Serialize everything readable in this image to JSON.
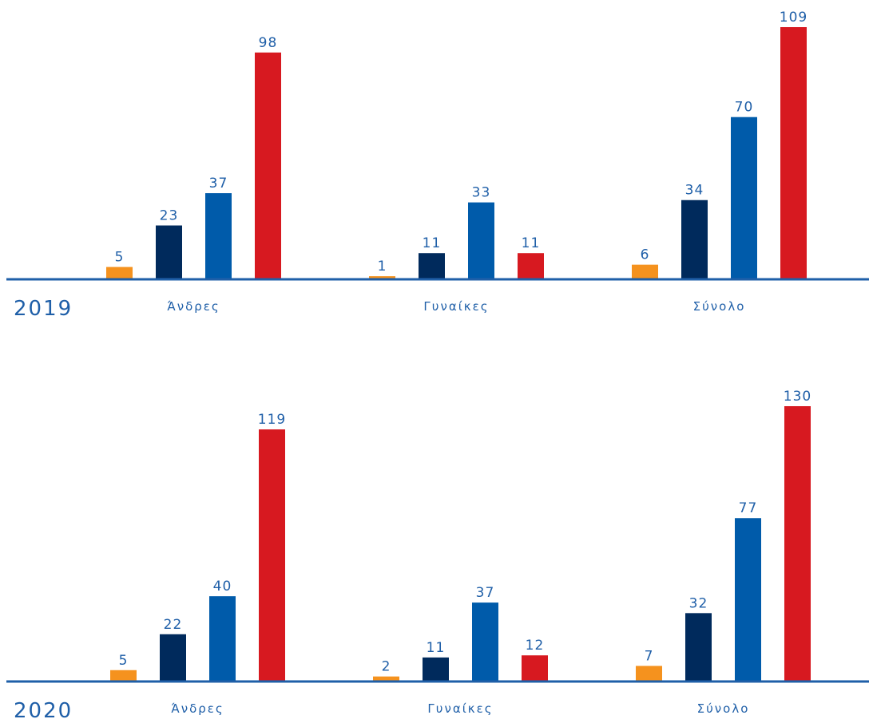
{
  "colors": [
    "#f5921e",
    "#002a5c",
    "#005baa",
    "#d71920"
  ],
  "chart_data": [
    {
      "type": "bar",
      "title": "2019",
      "categories": [
        "Άνδρες",
        "Γυναίκες",
        "Σύνολο"
      ],
      "series": [
        {
          "values": [
            5,
            1,
            6
          ],
          "color": "#f5921e"
        },
        {
          "values": [
            23,
            11,
            34
          ],
          "color": "#002a5c"
        },
        {
          "values": [
            37,
            33,
            70
          ],
          "color": "#005baa"
        },
        {
          "values": [
            98,
            11,
            109
          ],
          "color": "#d71920"
        }
      ],
      "ylim": [
        0,
        109
      ]
    },
    {
      "type": "bar",
      "title": "2020",
      "categories": [
        "Άνδρες",
        "Γυναίκες",
        "Σύνολο"
      ],
      "series": [
        {
          "values": [
            5,
            2,
            7
          ],
          "color": "#f5921e"
        },
        {
          "values": [
            22,
            11,
            32
          ],
          "color": "#002a5c"
        },
        {
          "values": [
            40,
            37,
            77
          ],
          "color": "#005baa"
        },
        {
          "values": [
            119,
            12,
            130
          ],
          "color": "#d71920"
        }
      ],
      "ylim": [
        0,
        130
      ]
    }
  ]
}
